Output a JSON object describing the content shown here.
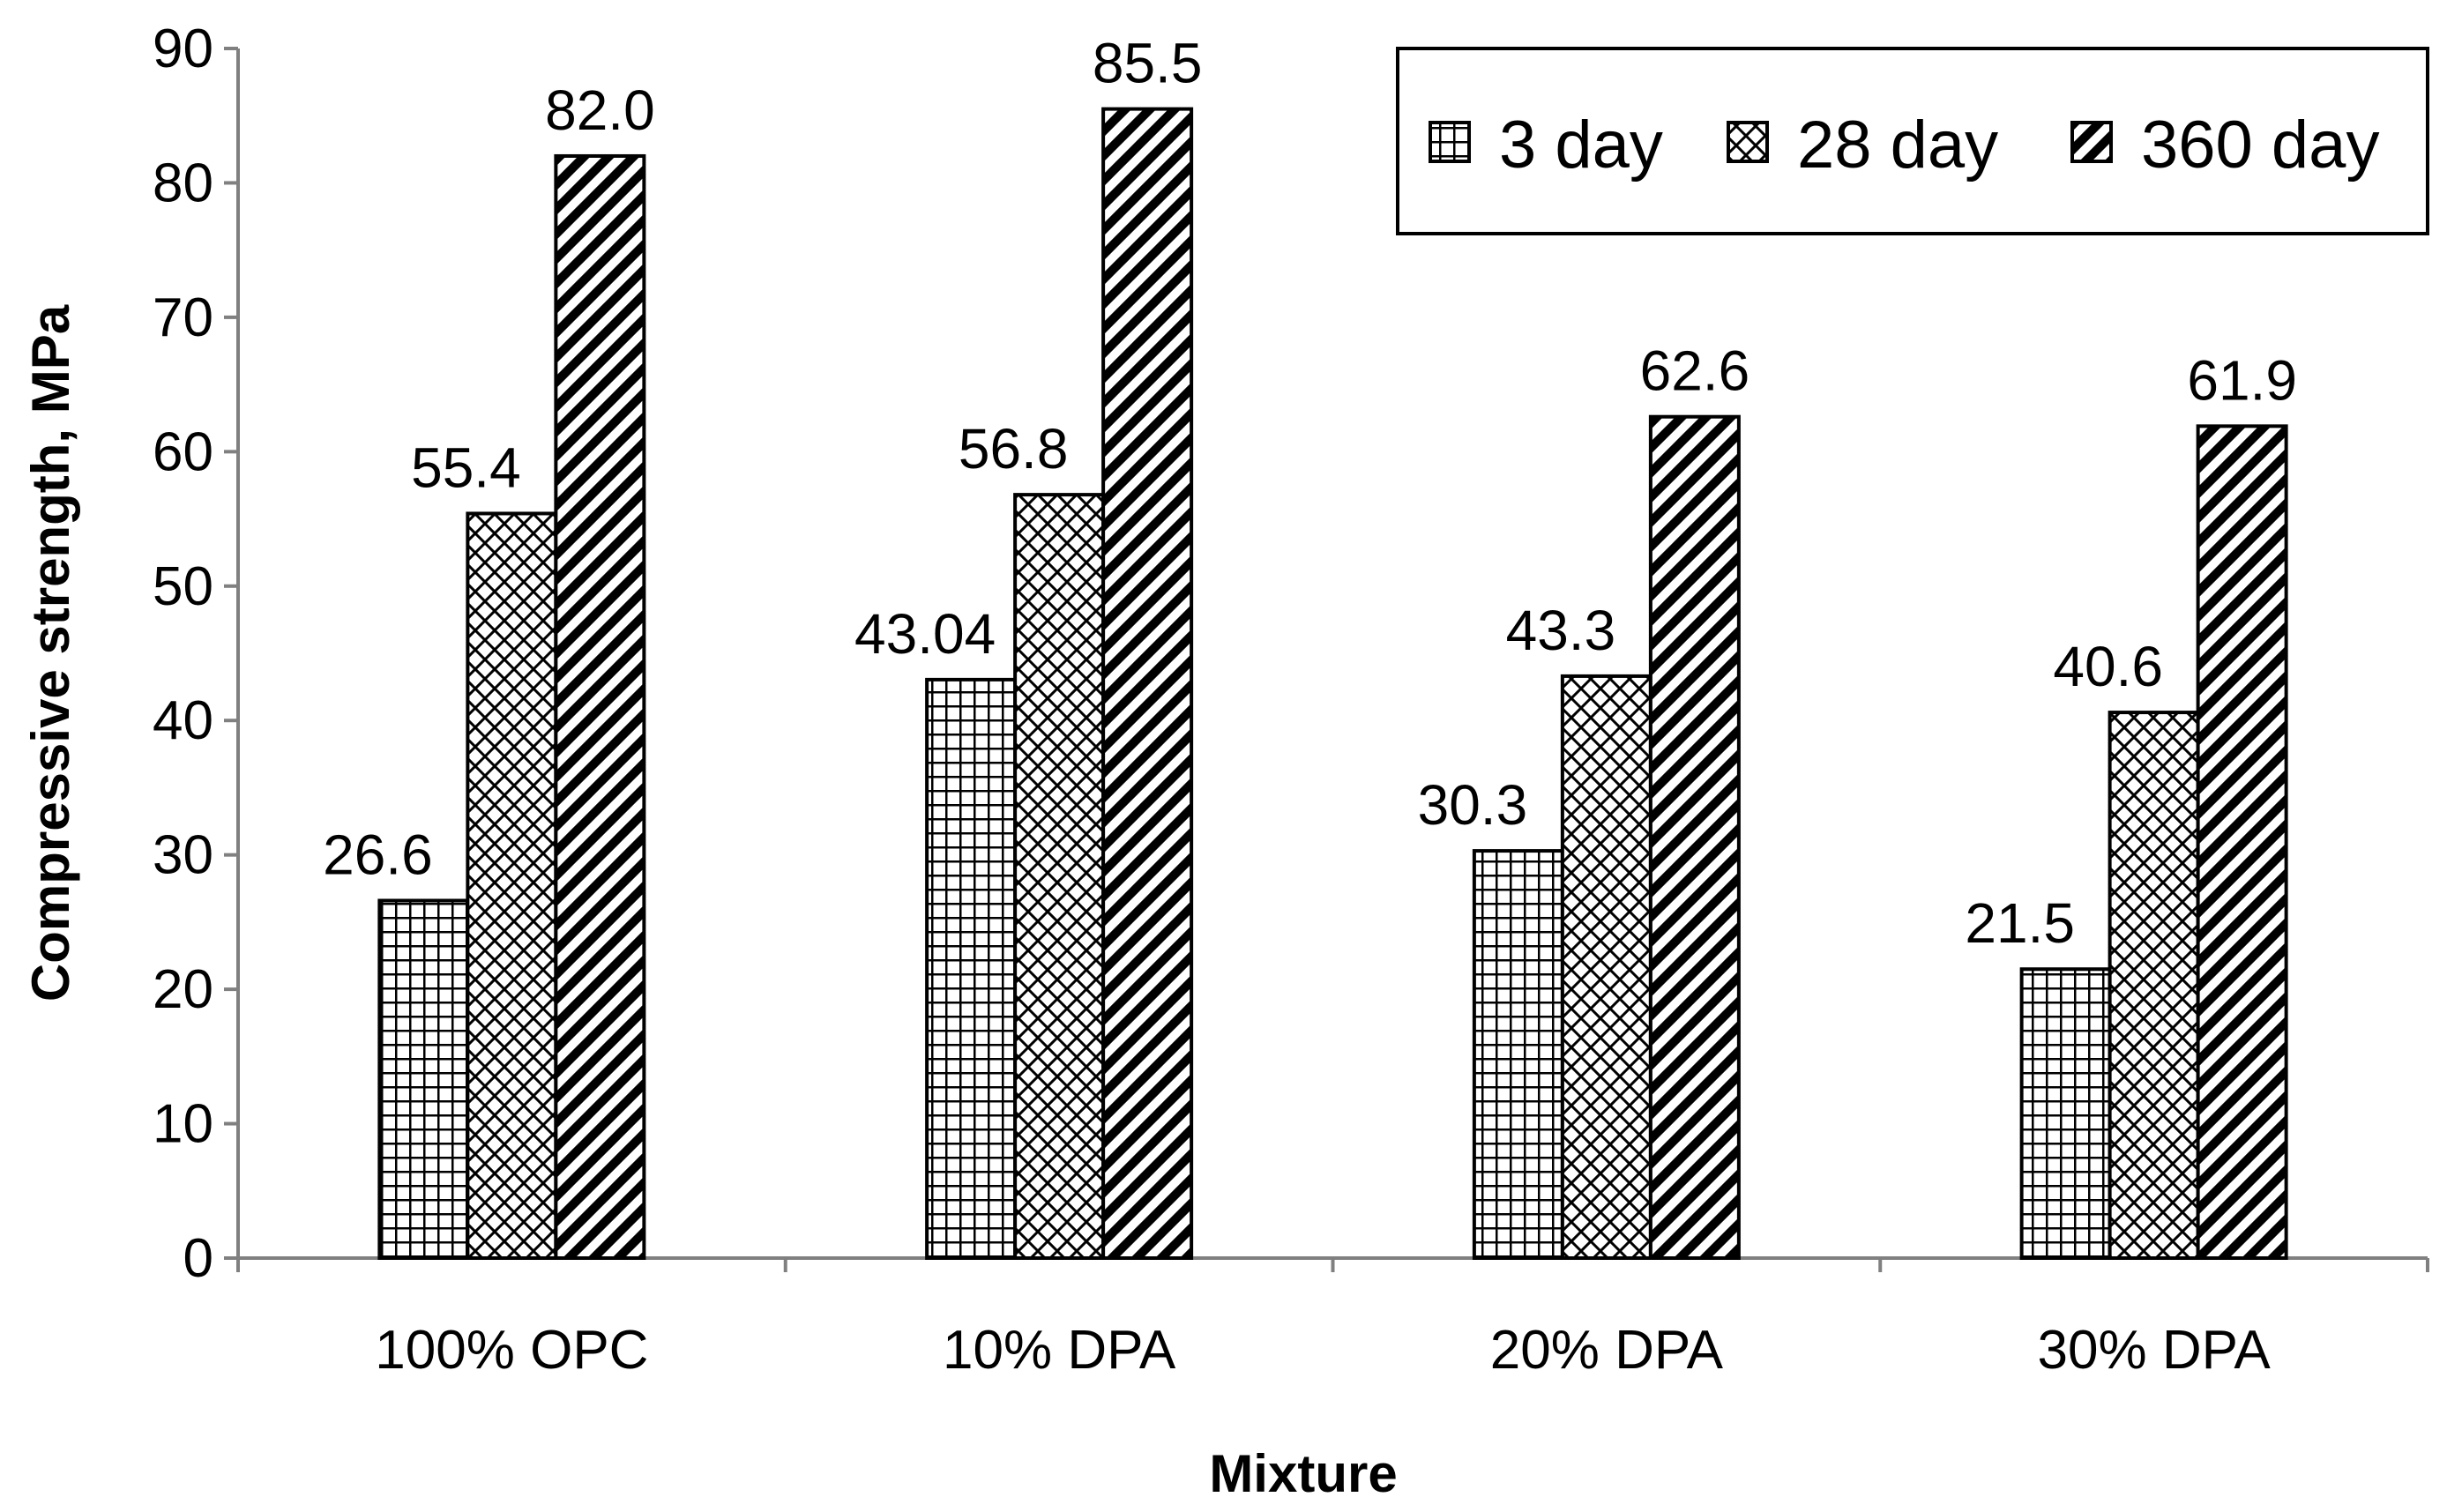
{
  "chart_data": {
    "type": "bar",
    "title": "",
    "xlabel": "Mixture",
    "ylabel": "Compressive strength, MPa",
    "ylim": [
      0,
      90
    ],
    "yticks": [
      0,
      10,
      20,
      30,
      40,
      50,
      60,
      70,
      80,
      90
    ],
    "categories": [
      "100% OPC",
      "10% DPA",
      "20% DPA",
      "30% DPA"
    ],
    "series": [
      {
        "name": "3 day",
        "pattern": "grid",
        "values": [
          26.6,
          43.04,
          30.3,
          21.5
        ],
        "labels": [
          "26.6",
          "43.04",
          "30.3",
          "21.5"
        ]
      },
      {
        "name": "28 day",
        "pattern": "crosshatch",
        "values": [
          55.4,
          56.8,
          43.3,
          40.6
        ],
        "labels": [
          "55.4",
          "56.8",
          "43.3",
          "40.6"
        ]
      },
      {
        "name": "360 day",
        "pattern": "diagonal",
        "values": [
          82.0,
          85.5,
          62.6,
          61.9
        ],
        "labels": [
          "82.0",
          "85.5",
          "62.6",
          "61.9"
        ]
      }
    ],
    "grid": false,
    "legend_position": "top-right",
    "colors": {
      "bar_fill": "#ffffff",
      "pattern": "#000000",
      "axis": "#808080",
      "bar_edge": "#000000"
    }
  }
}
